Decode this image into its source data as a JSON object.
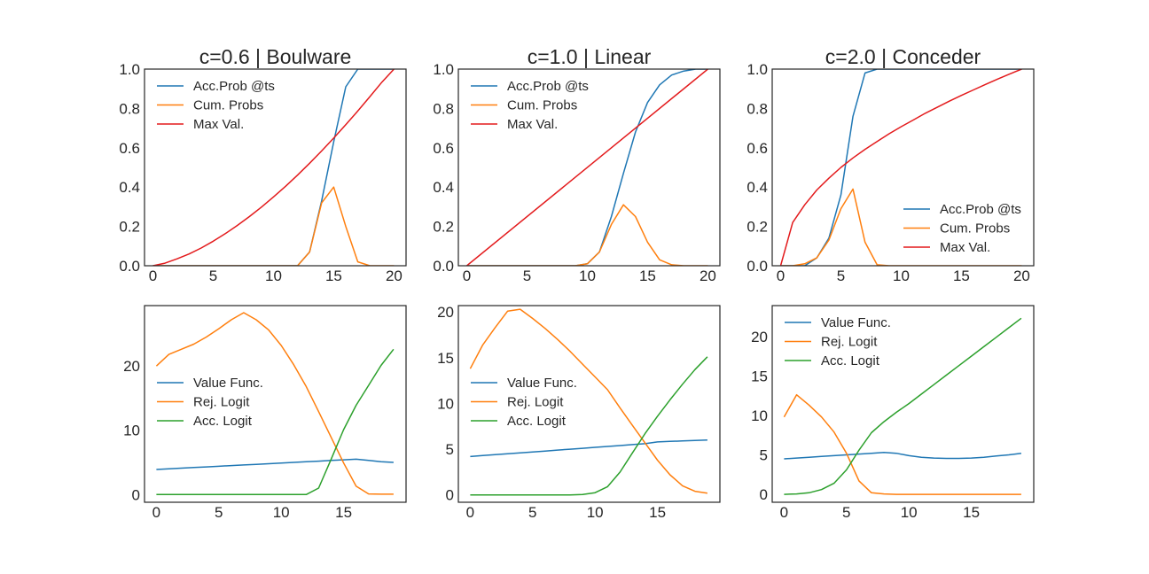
{
  "colors": {
    "blue": "#1f77b4",
    "orange": "#ff7f0e",
    "red": "#e31a1c",
    "green": "#2ca02c",
    "frame": "#262626"
  },
  "chart_data": [
    {
      "type": "line",
      "title": "c=0.6 | Boulware",
      "xlim": [
        -0.7,
        21
      ],
      "ylim": [
        0,
        1
      ],
      "xticks": [
        0,
        5,
        10,
        15,
        20
      ],
      "yticks": [
        0.0,
        0.2,
        0.4,
        0.6,
        0.8,
        1.0
      ],
      "grid": false,
      "legend": "top-left",
      "series": [
        {
          "name": "Acc.Prob @ts",
          "color": "#1f77b4",
          "x": [
            0,
            1,
            2,
            3,
            4,
            5,
            6,
            7,
            8,
            9,
            10,
            11,
            12,
            13,
            14,
            15,
            16,
            17,
            18,
            19,
            20
          ],
          "y": [
            0,
            0,
            0,
            0,
            0,
            0,
            0,
            0,
            0,
            0,
            0,
            0,
            0,
            0.07,
            0.33,
            0.63,
            0.91,
            1.0,
            1.0,
            1.0,
            1.0
          ]
        },
        {
          "name": "Cum. Probs",
          "color": "#ff7f0e",
          "x": [
            0,
            1,
            2,
            3,
            4,
            5,
            6,
            7,
            8,
            9,
            10,
            11,
            12,
            13,
            14,
            15,
            16,
            17,
            18,
            19,
            20
          ],
          "y": [
            0,
            0,
            0,
            0,
            0,
            0,
            0,
            0,
            0,
            0,
            0,
            0,
            0,
            0.07,
            0.32,
            0.4,
            0.2,
            0.02,
            0,
            0,
            0
          ]
        },
        {
          "name": "Max Val.",
          "color": "#e31a1c",
          "x": [
            0,
            1,
            2,
            3,
            4,
            5,
            6,
            7,
            8,
            9,
            10,
            11,
            12,
            13,
            14,
            15,
            16,
            17,
            18,
            19,
            20
          ],
          "y": [
            0,
            0.013,
            0.035,
            0.06,
            0.09,
            0.125,
            0.163,
            0.205,
            0.25,
            0.298,
            0.35,
            0.404,
            0.461,
            0.521,
            0.584,
            0.649,
            0.717,
            0.787,
            0.86,
            0.934,
            1.0
          ]
        }
      ]
    },
    {
      "type": "line",
      "title": "c=1.0 | Linear",
      "xlim": [
        -0.7,
        21
      ],
      "ylim": [
        0,
        1
      ],
      "xticks": [
        0,
        5,
        10,
        15,
        20
      ],
      "yticks": [
        0.0,
        0.2,
        0.4,
        0.6,
        0.8,
        1.0
      ],
      "grid": false,
      "legend": "top-left",
      "series": [
        {
          "name": "Acc.Prob @ts",
          "color": "#1f77b4",
          "x": [
            0,
            1,
            2,
            3,
            4,
            5,
            6,
            7,
            8,
            9,
            10,
            11,
            12,
            13,
            14,
            15,
            16,
            17,
            18,
            19,
            20
          ],
          "y": [
            0,
            0,
            0,
            0,
            0,
            0,
            0,
            0,
            0,
            0,
            0.01,
            0.07,
            0.25,
            0.47,
            0.68,
            0.83,
            0.92,
            0.97,
            0.99,
            1.0,
            1.0
          ]
        },
        {
          "name": "Cum. Probs",
          "color": "#ff7f0e",
          "x": [
            0,
            1,
            2,
            3,
            4,
            5,
            6,
            7,
            8,
            9,
            10,
            11,
            12,
            13,
            14,
            15,
            16,
            17,
            18,
            19,
            20
          ],
          "y": [
            0,
            0,
            0,
            0,
            0,
            0,
            0,
            0,
            0,
            0,
            0.01,
            0.07,
            0.21,
            0.31,
            0.25,
            0.12,
            0.03,
            0.005,
            0,
            0,
            0
          ]
        },
        {
          "name": "Max Val.",
          "color": "#e31a1c",
          "x": [
            0,
            20
          ],
          "y": [
            0,
            1.0
          ]
        }
      ]
    },
    {
      "type": "line",
      "title": "c=2.0 | Conceder",
      "xlim": [
        -0.7,
        21
      ],
      "ylim": [
        0,
        1
      ],
      "xticks": [
        0,
        5,
        10,
        15,
        20
      ],
      "yticks": [
        0.0,
        0.2,
        0.4,
        0.6,
        0.8,
        1.0
      ],
      "grid": false,
      "legend": "lower-right",
      "series": [
        {
          "name": "Acc.Prob @ts",
          "color": "#1f77b4",
          "x": [
            0,
            1,
            2,
            3,
            4,
            5,
            6,
            7,
            8,
            9,
            10,
            11,
            12,
            13,
            14,
            15,
            16,
            17,
            18,
            19,
            20
          ],
          "y": [
            0,
            0,
            0,
            0.04,
            0.14,
            0.36,
            0.76,
            0.98,
            1.0,
            1.0,
            1.0,
            1.0,
            1.0,
            1.0,
            1.0,
            1.0,
            1.0,
            1.0,
            1.0,
            1.0,
            1.0
          ]
        },
        {
          "name": "Cum. Probs",
          "color": "#ff7f0e",
          "x": [
            0,
            1,
            2,
            3,
            4,
            5,
            6,
            7,
            8,
            9,
            10,
            11,
            12,
            13,
            14,
            15,
            16,
            17,
            18,
            19,
            20
          ],
          "y": [
            0,
            0,
            0.01,
            0.04,
            0.13,
            0.29,
            0.39,
            0.12,
            0.005,
            0,
            0,
            0,
            0,
            0,
            0,
            0,
            0,
            0,
            0,
            0,
            0
          ]
        },
        {
          "name": "Max Val.",
          "color": "#e31a1c",
          "x": [
            0,
            1,
            2,
            3,
            4,
            5,
            6,
            7,
            8,
            9,
            10,
            11,
            12,
            13,
            14,
            15,
            16,
            17,
            18,
            19,
            20
          ],
          "y": [
            0,
            0.22,
            0.31,
            0.385,
            0.445,
            0.5,
            0.548,
            0.592,
            0.632,
            0.671,
            0.707,
            0.741,
            0.775,
            0.806,
            0.837,
            0.866,
            0.894,
            0.922,
            0.949,
            0.975,
            1.0
          ]
        }
      ]
    },
    {
      "type": "line",
      "xlim": [
        -0.95,
        20
      ],
      "ylim": [
        -1.2,
        29.4
      ],
      "xticks": [
        0,
        5,
        10,
        15
      ],
      "yticks": [
        0,
        10,
        20
      ],
      "grid": false,
      "legend": "center-left",
      "series": [
        {
          "name": "Value Func.",
          "color": "#1f77b4",
          "x": [
            0,
            1,
            2,
            3,
            4,
            5,
            6,
            7,
            8,
            9,
            10,
            11,
            12,
            13,
            14,
            15,
            16,
            17,
            18,
            19
          ],
          "y": [
            3.9,
            4.0,
            4.1,
            4.2,
            4.3,
            4.4,
            4.5,
            4.6,
            4.7,
            4.8,
            4.9,
            5.0,
            5.1,
            5.2,
            5.3,
            5.4,
            5.5,
            5.3,
            5.1,
            5.0
          ]
        },
        {
          "name": "Rej. Logit",
          "color": "#ff7f0e",
          "x": [
            0,
            1,
            2,
            3,
            4,
            5,
            6,
            7,
            8,
            9,
            10,
            11,
            12,
            13,
            14,
            15,
            16,
            17,
            18,
            19
          ],
          "y": [
            20,
            21.8,
            22.6,
            23.4,
            24.5,
            25.8,
            27.2,
            28.3,
            27.2,
            25.6,
            23.2,
            20.2,
            16.8,
            12.9,
            8.9,
            4.9,
            1.3,
            0.1,
            0.05,
            0.05
          ]
        },
        {
          "name": "Acc. Logit",
          "color": "#2ca02c",
          "x": [
            0,
            1,
            2,
            3,
            4,
            5,
            6,
            7,
            8,
            9,
            10,
            11,
            12,
            13,
            14,
            15,
            16,
            17,
            18,
            19
          ],
          "y": [
            0,
            0,
            0,
            0,
            0,
            0,
            0,
            0,
            0,
            0,
            0,
            0,
            0,
            1.0,
            5.5,
            10.1,
            13.9,
            17.0,
            20.1,
            22.6
          ]
        }
      ]
    },
    {
      "type": "line",
      "xlim": [
        -0.95,
        20
      ],
      "ylim": [
        -0.8,
        20.7
      ],
      "xticks": [
        0,
        5,
        10,
        15
      ],
      "yticks": [
        0,
        5,
        10,
        15,
        20
      ],
      "grid": false,
      "legend": "center-left",
      "series": [
        {
          "name": "Value Func.",
          "color": "#1f77b4",
          "x": [
            0,
            1,
            2,
            3,
            4,
            5,
            6,
            7,
            8,
            9,
            10,
            11,
            12,
            13,
            14,
            15,
            16,
            17,
            18,
            19
          ],
          "y": [
            4.2,
            4.3,
            4.4,
            4.5,
            4.6,
            4.7,
            4.8,
            4.9,
            5.0,
            5.1,
            5.2,
            5.3,
            5.4,
            5.5,
            5.6,
            5.8,
            5.85,
            5.9,
            5.95,
            6.0
          ]
        },
        {
          "name": "Rej. Logit",
          "color": "#ff7f0e",
          "x": [
            0,
            1,
            2,
            3,
            4,
            5,
            6,
            7,
            8,
            9,
            10,
            11,
            12,
            13,
            14,
            15,
            16,
            17,
            18,
            19
          ],
          "y": [
            13.8,
            16.4,
            18.3,
            20.1,
            20.3,
            19.3,
            18.2,
            17.0,
            15.7,
            14.3,
            12.9,
            11.5,
            9.5,
            7.6,
            5.7,
            3.8,
            2.2,
            1.0,
            0.4,
            0.2
          ]
        },
        {
          "name": "Acc. Logit",
          "color": "#2ca02c",
          "x": [
            0,
            1,
            2,
            3,
            4,
            5,
            6,
            7,
            8,
            9,
            10,
            11,
            12,
            13,
            14,
            15,
            16,
            17,
            18,
            19
          ],
          "y": [
            0,
            0,
            0,
            0,
            0,
            0,
            0,
            0,
            0,
            0.05,
            0.25,
            0.9,
            2.5,
            4.6,
            6.7,
            8.6,
            10.4,
            12.1,
            13.7,
            15.1
          ]
        }
      ]
    },
    {
      "type": "line",
      "xlim": [
        -0.95,
        20
      ],
      "ylim": [
        -1.0,
        23.9
      ],
      "xticks": [
        0,
        5,
        10,
        15
      ],
      "yticks": [
        0,
        5,
        10,
        15,
        20
      ],
      "grid": false,
      "legend": "top-left",
      "series": [
        {
          "name": "Value Func.",
          "color": "#1f77b4",
          "x": [
            0,
            1,
            2,
            3,
            4,
            5,
            6,
            7,
            8,
            9,
            10,
            11,
            12,
            13,
            14,
            15,
            16,
            17,
            18,
            19
          ],
          "y": [
            4.5,
            4.6,
            4.7,
            4.8,
            4.9,
            5.0,
            5.1,
            5.2,
            5.3,
            5.2,
            4.9,
            4.7,
            4.6,
            4.55,
            4.55,
            4.6,
            4.7,
            4.85,
            5.0,
            5.2
          ]
        },
        {
          "name": "Rej. Logit",
          "color": "#ff7f0e",
          "x": [
            0,
            1,
            2,
            3,
            4,
            5,
            6,
            7,
            8,
            9,
            10,
            11,
            12,
            13,
            14,
            15,
            16,
            17,
            18,
            19
          ],
          "y": [
            9.8,
            12.6,
            11.3,
            9.8,
            7.9,
            5.2,
            1.7,
            0.2,
            0.05,
            0,
            0,
            0,
            0,
            0,
            0,
            0,
            0,
            0,
            0,
            0
          ]
        },
        {
          "name": "Acc. Logit",
          "color": "#2ca02c",
          "x": [
            0,
            1,
            2,
            3,
            4,
            5,
            6,
            7,
            8,
            9,
            10,
            11,
            12,
            13,
            14,
            15,
            16,
            17,
            18,
            19
          ],
          "y": [
            0,
            0.05,
            0.2,
            0.6,
            1.4,
            3.1,
            5.6,
            7.8,
            9.2,
            10.4,
            11.5,
            12.7,
            13.9,
            15.1,
            16.3,
            17.5,
            18.7,
            19.9,
            21.1,
            22.3
          ]
        }
      ]
    }
  ]
}
